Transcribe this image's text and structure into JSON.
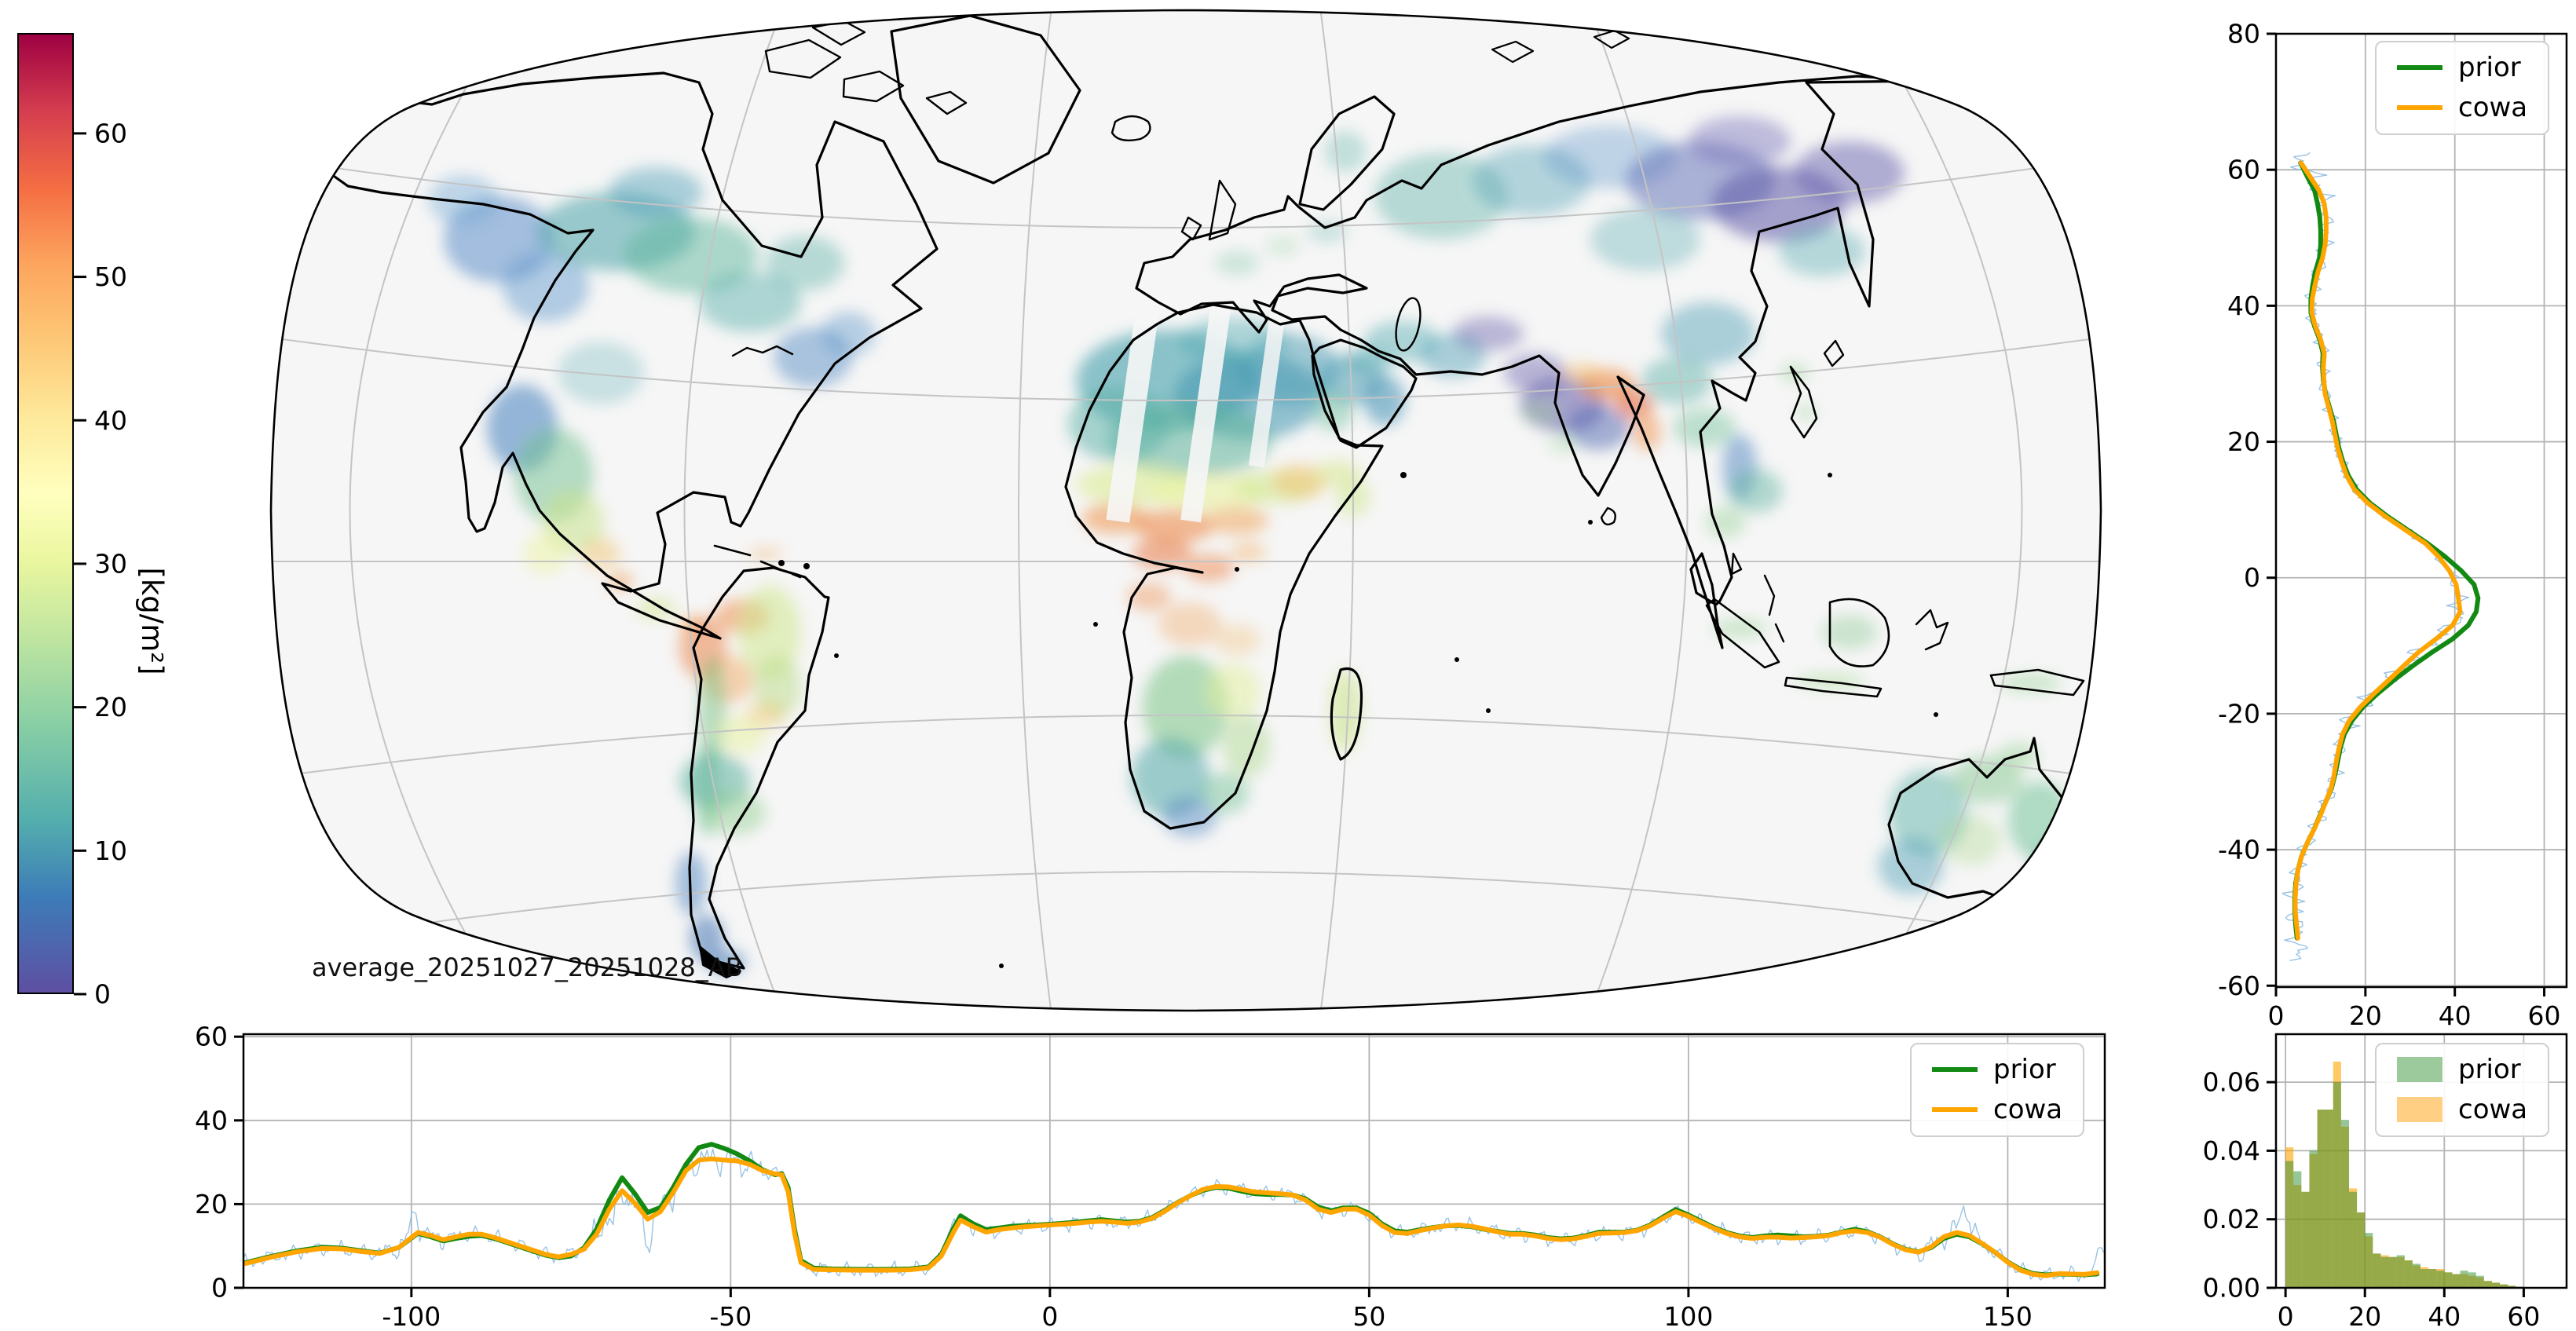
{
  "figure": {
    "background": "#ffffff"
  },
  "series_colors": {
    "prior": "#128912",
    "cowa": "#ffa500",
    "raw": "#8fbce0"
  },
  "histogram_fill": {
    "prior": "rgba(60,150,60,0.5)",
    "cowa": "rgba(255,170,30,0.55)"
  },
  "chart_data": [
    {
      "id": "map",
      "type": "heatmap",
      "annotation": "average_20251027_20251028_AB",
      "colorbar": {
        "label": "[kg/m²]",
        "ticks": [
          0,
          10,
          20,
          30,
          40,
          50,
          60
        ],
        "vmin": 0,
        "vmax": 67,
        "colormap": "Spectral_r",
        "stops": [
          [
            0,
            "#5e4fa2"
          ],
          [
            0.1,
            "#3d7cb8"
          ],
          [
            0.18,
            "#54aead"
          ],
          [
            0.28,
            "#89cfa5"
          ],
          [
            0.37,
            "#bfe5a0"
          ],
          [
            0.45,
            "#eaf69f"
          ],
          [
            0.52,
            "#ffffbf"
          ],
          [
            0.6,
            "#fee99b"
          ],
          [
            0.68,
            "#fdc877"
          ],
          [
            0.76,
            "#fda55e"
          ],
          [
            0.84,
            "#f46d43"
          ],
          [
            0.92,
            "#d53e4f"
          ],
          [
            1,
            "#9e0142"
          ]
        ]
      },
      "map_background": "#f6f6f6",
      "grid_color": "#c4c4c4",
      "coast_color": "#000000"
    },
    {
      "id": "lat_profile",
      "type": "line",
      "xlim": [
        0,
        65
      ],
      "ylim": [
        -60.2,
        80
      ],
      "xticks": [
        0,
        20,
        40,
        60
      ],
      "yticks": [
        80,
        60,
        40,
        20,
        0,
        -20,
        -40,
        -60
      ],
      "legend": [
        "prior",
        "cowa"
      ],
      "series": [
        {
          "name": "prior"
        },
        {
          "name": "cowa"
        }
      ],
      "points": [
        [
          61,
          5.5,
          5.6
        ],
        [
          59,
          7,
          7.6
        ],
        [
          57,
          8.6,
          9.6
        ],
        [
          55,
          9.3,
          10.8
        ],
        [
          53,
          9.8,
          11.2
        ],
        [
          51,
          10,
          11.2
        ],
        [
          49,
          10,
          11
        ],
        [
          47,
          9.7,
          10.4
        ],
        [
          45,
          8.8,
          9.4
        ],
        [
          43,
          8.2,
          8.7
        ],
        [
          41,
          7.8,
          8.1
        ],
        [
          39,
          7.8,
          8
        ],
        [
          37,
          8.6,
          8.8
        ],
        [
          35,
          9.8,
          10
        ],
        [
          33,
          10.5,
          10.8
        ],
        [
          31,
          10.4,
          10.6
        ],
        [
          29,
          10.6,
          10.7
        ],
        [
          27,
          11.1,
          11
        ],
        [
          25,
          12,
          11.8
        ],
        [
          23,
          12.9,
          12.6
        ],
        [
          21,
          13.5,
          13.2
        ],
        [
          19,
          14.1,
          13.8
        ],
        [
          17,
          15,
          14.7
        ],
        [
          15,
          16.2,
          15.8
        ],
        [
          13,
          18,
          17.5
        ],
        [
          11,
          21,
          20.5
        ],
        [
          9,
          25,
          24.5
        ],
        [
          7,
          29.5,
          29
        ],
        [
          5,
          34,
          33.5
        ],
        [
          3,
          38,
          36.5
        ],
        [
          1,
          41.5,
          38.8
        ],
        [
          -1,
          44.3,
          40.3
        ],
        [
          -3,
          45.2,
          40.8
        ],
        [
          -5,
          44.8,
          41.2
        ],
        [
          -7,
          43,
          39.5
        ],
        [
          -9,
          39.5,
          35.8
        ],
        [
          -11,
          34.8,
          31.8
        ],
        [
          -13,
          30.5,
          28.5
        ],
        [
          -15,
          26.5,
          25.3
        ],
        [
          -17,
          22.8,
          22
        ],
        [
          -19,
          19.5,
          18.9
        ],
        [
          -21,
          17,
          16.4
        ],
        [
          -23,
          15.3,
          14.9
        ],
        [
          -25,
          14.4,
          14.1
        ],
        [
          -27,
          13.8,
          13.5
        ],
        [
          -29,
          13.2,
          13
        ],
        [
          -31,
          12.4,
          12.3
        ],
        [
          -33,
          11.1,
          11.1
        ],
        [
          -35,
          9.8,
          9.9
        ],
        [
          -37,
          8.5,
          8.5
        ],
        [
          -39,
          7,
          7
        ],
        [
          -41,
          5.7,
          5.7
        ],
        [
          -43,
          4.9,
          4.9
        ],
        [
          -45,
          4.4,
          4.5
        ],
        [
          -47,
          4.2,
          4.3
        ],
        [
          -49,
          4.2,
          4.3
        ],
        [
          -51,
          4.4,
          4.6
        ],
        [
          -53,
          4.7,
          4.9
        ]
      ]
    },
    {
      "id": "lon_profile",
      "type": "line",
      "xlim": [
        -126.3,
        165.2
      ],
      "ylim": [
        0,
        60.6
      ],
      "xticks": [
        -100,
        -50,
        0,
        50,
        100,
        150
      ],
      "yticks": [
        0,
        20,
        40,
        60
      ],
      "legend": [
        "prior",
        "cowa"
      ],
      "series": [
        {
          "name": "prior"
        },
        {
          "name": "cowa"
        }
      ],
      "points": [
        [
          -126,
          6,
          5.8
        ],
        [
          -122,
          7.5,
          7.3
        ],
        [
          -118,
          8.8,
          8.6
        ],
        [
          -114,
          9.7,
          9.4
        ],
        [
          -111,
          9.5,
          9.3
        ],
        [
          -108,
          8.9,
          8.7
        ],
        [
          -105,
          8.3,
          8.2
        ],
        [
          -102,
          9.6,
          9.6
        ],
        [
          -99,
          13,
          13.2
        ],
        [
          -97,
          12.2,
          12.5
        ],
        [
          -95,
          11.2,
          11.5
        ],
        [
          -93,
          11.8,
          12.2
        ],
        [
          -91,
          12.3,
          12.8
        ],
        [
          -89,
          12.5,
          12.8
        ],
        [
          -87,
          11.8,
          12
        ],
        [
          -85,
          10.8,
          11
        ],
        [
          -83,
          9.8,
          10
        ],
        [
          -81,
          8.8,
          9
        ],
        [
          -79,
          7.8,
          8
        ],
        [
          -77,
          7.2,
          7.4
        ],
        [
          -75,
          7.6,
          8
        ],
        [
          -73,
          9.5,
          9.2
        ],
        [
          -71,
          14,
          12.8
        ],
        [
          -69,
          21,
          18.8
        ],
        [
          -67,
          26.3,
          23.2
        ],
        [
          -65,
          22.5,
          20.2
        ],
        [
          -63,
          18,
          16.4
        ],
        [
          -61,
          19.2,
          18.2
        ],
        [
          -59,
          24,
          22.8
        ],
        [
          -57,
          29.5,
          28
        ],
        [
          -55,
          33.5,
          30.5
        ],
        [
          -53,
          34.3,
          30.8
        ],
        [
          -51,
          33.3,
          30.5
        ],
        [
          -49,
          32,
          30.3
        ],
        [
          -47,
          30.3,
          29.5
        ],
        [
          -45,
          28.2,
          28
        ],
        [
          -43,
          27,
          27.2
        ],
        [
          -42,
          27.3,
          27
        ],
        [
          -41,
          24,
          23
        ],
        [
          -40,
          14,
          13
        ],
        [
          -39,
          6.5,
          6
        ],
        [
          -37,
          4.7,
          4.4
        ],
        [
          -34,
          4.5,
          4.3
        ],
        [
          -30,
          4.4,
          4.2
        ],
        [
          -26,
          4.4,
          4.2
        ],
        [
          -22,
          4.5,
          4.3
        ],
        [
          -19,
          5,
          4.8
        ],
        [
          -17,
          8,
          7.6
        ],
        [
          -15,
          14.5,
          13.6
        ],
        [
          -14,
          17.2,
          16.2
        ],
        [
          -12,
          15.3,
          14.6
        ],
        [
          -10,
          13.9,
          13.3
        ],
        [
          -8,
          14.3,
          13.9
        ],
        [
          -6,
          14.7,
          14.3
        ],
        [
          -4,
          14.9,
          14.6
        ],
        [
          -2,
          15,
          14.8
        ],
        [
          0,
          15.2,
          15
        ],
        [
          2,
          15.4,
          15.2
        ],
        [
          4,
          15.7,
          15.4
        ],
        [
          6,
          16,
          15.7
        ],
        [
          8,
          16.3,
          15.9
        ],
        [
          10,
          16,
          15.7
        ],
        [
          12,
          15.7,
          15.4
        ],
        [
          14,
          15.9,
          15.7
        ],
        [
          16,
          16.8,
          16.6
        ],
        [
          18,
          18.5,
          18.3
        ],
        [
          20,
          20.4,
          20.3
        ],
        [
          22,
          22,
          22
        ],
        [
          24,
          23.3,
          23.5
        ],
        [
          26,
          24,
          24.2
        ],
        [
          28,
          23.8,
          24.1
        ],
        [
          30,
          23.1,
          23.5
        ],
        [
          32,
          22.5,
          22.9
        ],
        [
          34,
          22.3,
          22.7
        ],
        [
          36,
          22.3,
          22.5
        ],
        [
          38,
          22.2,
          22.2
        ],
        [
          40,
          21.3,
          21
        ],
        [
          42,
          19.3,
          18.8
        ],
        [
          44,
          18.4,
          18
        ],
        [
          46,
          19.1,
          18.8
        ],
        [
          48,
          19.1,
          18.8
        ],
        [
          50,
          17.8,
          17.4
        ],
        [
          52,
          15.3,
          14.9
        ],
        [
          54,
          13.6,
          13.2
        ],
        [
          56,
          13.3,
          13
        ],
        [
          58,
          13.9,
          13.7
        ],
        [
          60,
          14.4,
          14.3
        ],
        [
          62,
          14.8,
          14.8
        ],
        [
          64,
          14.9,
          15
        ],
        [
          66,
          14.6,
          14.7
        ],
        [
          68,
          14,
          14.1
        ],
        [
          70,
          13.5,
          13.4
        ],
        [
          72,
          13,
          12.8
        ],
        [
          74,
          13,
          12.8
        ],
        [
          76,
          12.6,
          12.4
        ],
        [
          78,
          12,
          11.8
        ],
        [
          80,
          11.7,
          11.5
        ],
        [
          82,
          11.9,
          11.7
        ],
        [
          84,
          12.5,
          12.3
        ],
        [
          86,
          13.3,
          13
        ],
        [
          88,
          13.3,
          13.1
        ],
        [
          90,
          13.3,
          13.2
        ],
        [
          92,
          13.8,
          13.7
        ],
        [
          94,
          15,
          14.8
        ],
        [
          96,
          16.9,
          16.6
        ],
        [
          98,
          18.7,
          18.2
        ],
        [
          100,
          17.4,
          17.1
        ],
        [
          102,
          15.9,
          15.6
        ],
        [
          104,
          14.4,
          14.2
        ],
        [
          106,
          13.2,
          13
        ],
        [
          108,
          12.4,
          12.2
        ],
        [
          110,
          12,
          11.8
        ],
        [
          112,
          12.4,
          12.1
        ],
        [
          114,
          12.6,
          12.1
        ],
        [
          116,
          12.4,
          11.9
        ],
        [
          118,
          12.2,
          12
        ],
        [
          120,
          12.3,
          12.2
        ],
        [
          122,
          12.6,
          12.5
        ],
        [
          124,
          13.3,
          13.2
        ],
        [
          126,
          14,
          13.6
        ],
        [
          128,
          13.4,
          13.2
        ],
        [
          130,
          12.2,
          12.1
        ],
        [
          132,
          10.5,
          10.4
        ],
        [
          134,
          9.2,
          9.1
        ],
        [
          136,
          8.6,
          8.5
        ],
        [
          138,
          9.6,
          9.8
        ],
        [
          140,
          11.8,
          12.2
        ],
        [
          142,
          12.8,
          13.2
        ],
        [
          144,
          12.2,
          12.5
        ],
        [
          146,
          10.5,
          10.6
        ],
        [
          148,
          8.5,
          8.5
        ],
        [
          150,
          6.2,
          6.1
        ],
        [
          152,
          4.4,
          4.2
        ],
        [
          154,
          3.4,
          3.2
        ],
        [
          156,
          3.1,
          2.9
        ],
        [
          158,
          3.3,
          3.4
        ],
        [
          160,
          3.2,
          3.3
        ],
        [
          162,
          3.1,
          3.2
        ],
        [
          164,
          3.3,
          3.6
        ]
      ]
    },
    {
      "id": "histogram",
      "type": "bar",
      "xlim": [
        -2.4,
        70.8
      ],
      "ylim": [
        0,
        0.074
      ],
      "xticks": [
        0,
        20,
        40,
        60
      ],
      "ytick_labels": [
        "0.00",
        "0.02",
        "0.04",
        "0.06"
      ],
      "yticks": [
        0,
        0.02,
        0.04,
        0.06
      ],
      "bin_width": 2,
      "legend": [
        "prior",
        "cowa"
      ],
      "bins": [
        [
          0,
          0.037,
          0.041
        ],
        [
          2,
          0.034,
          0.03
        ],
        [
          4,
          0.028,
          0.028
        ],
        [
          6,
          0.04,
          0.039
        ],
        [
          8,
          0.052,
          0.052
        ],
        [
          10,
          0.052,
          0.052
        ],
        [
          12,
          0.06,
          0.066
        ],
        [
          14,
          0.049,
          0.047
        ],
        [
          16,
          0.028,
          0.029
        ],
        [
          18,
          0.022,
          0.022
        ],
        [
          20,
          0.016,
          0.015
        ],
        [
          22,
          0.01,
          0.01
        ],
        [
          24,
          0.009,
          0.0095
        ],
        [
          26,
          0.009,
          0.009
        ],
        [
          28,
          0.0095,
          0.009
        ],
        [
          30,
          0.008,
          0.008
        ],
        [
          32,
          0.007,
          0.0065
        ],
        [
          34,
          0.0055,
          0.006
        ],
        [
          36,
          0.0055,
          0.0055
        ],
        [
          38,
          0.005,
          0.0055
        ],
        [
          40,
          0.0045,
          0.0045
        ],
        [
          42,
          0.004,
          0.004
        ],
        [
          44,
          0.005,
          0.004
        ],
        [
          46,
          0.0045,
          0.0035
        ],
        [
          48,
          0.0035,
          0.003
        ],
        [
          50,
          0.002,
          0.002
        ],
        [
          52,
          0.0015,
          0.0015
        ],
        [
          54,
          0.001,
          0.001
        ],
        [
          56,
          0.0006,
          0.0006
        ],
        [
          58,
          0.0003,
          0.0003
        ]
      ]
    }
  ]
}
